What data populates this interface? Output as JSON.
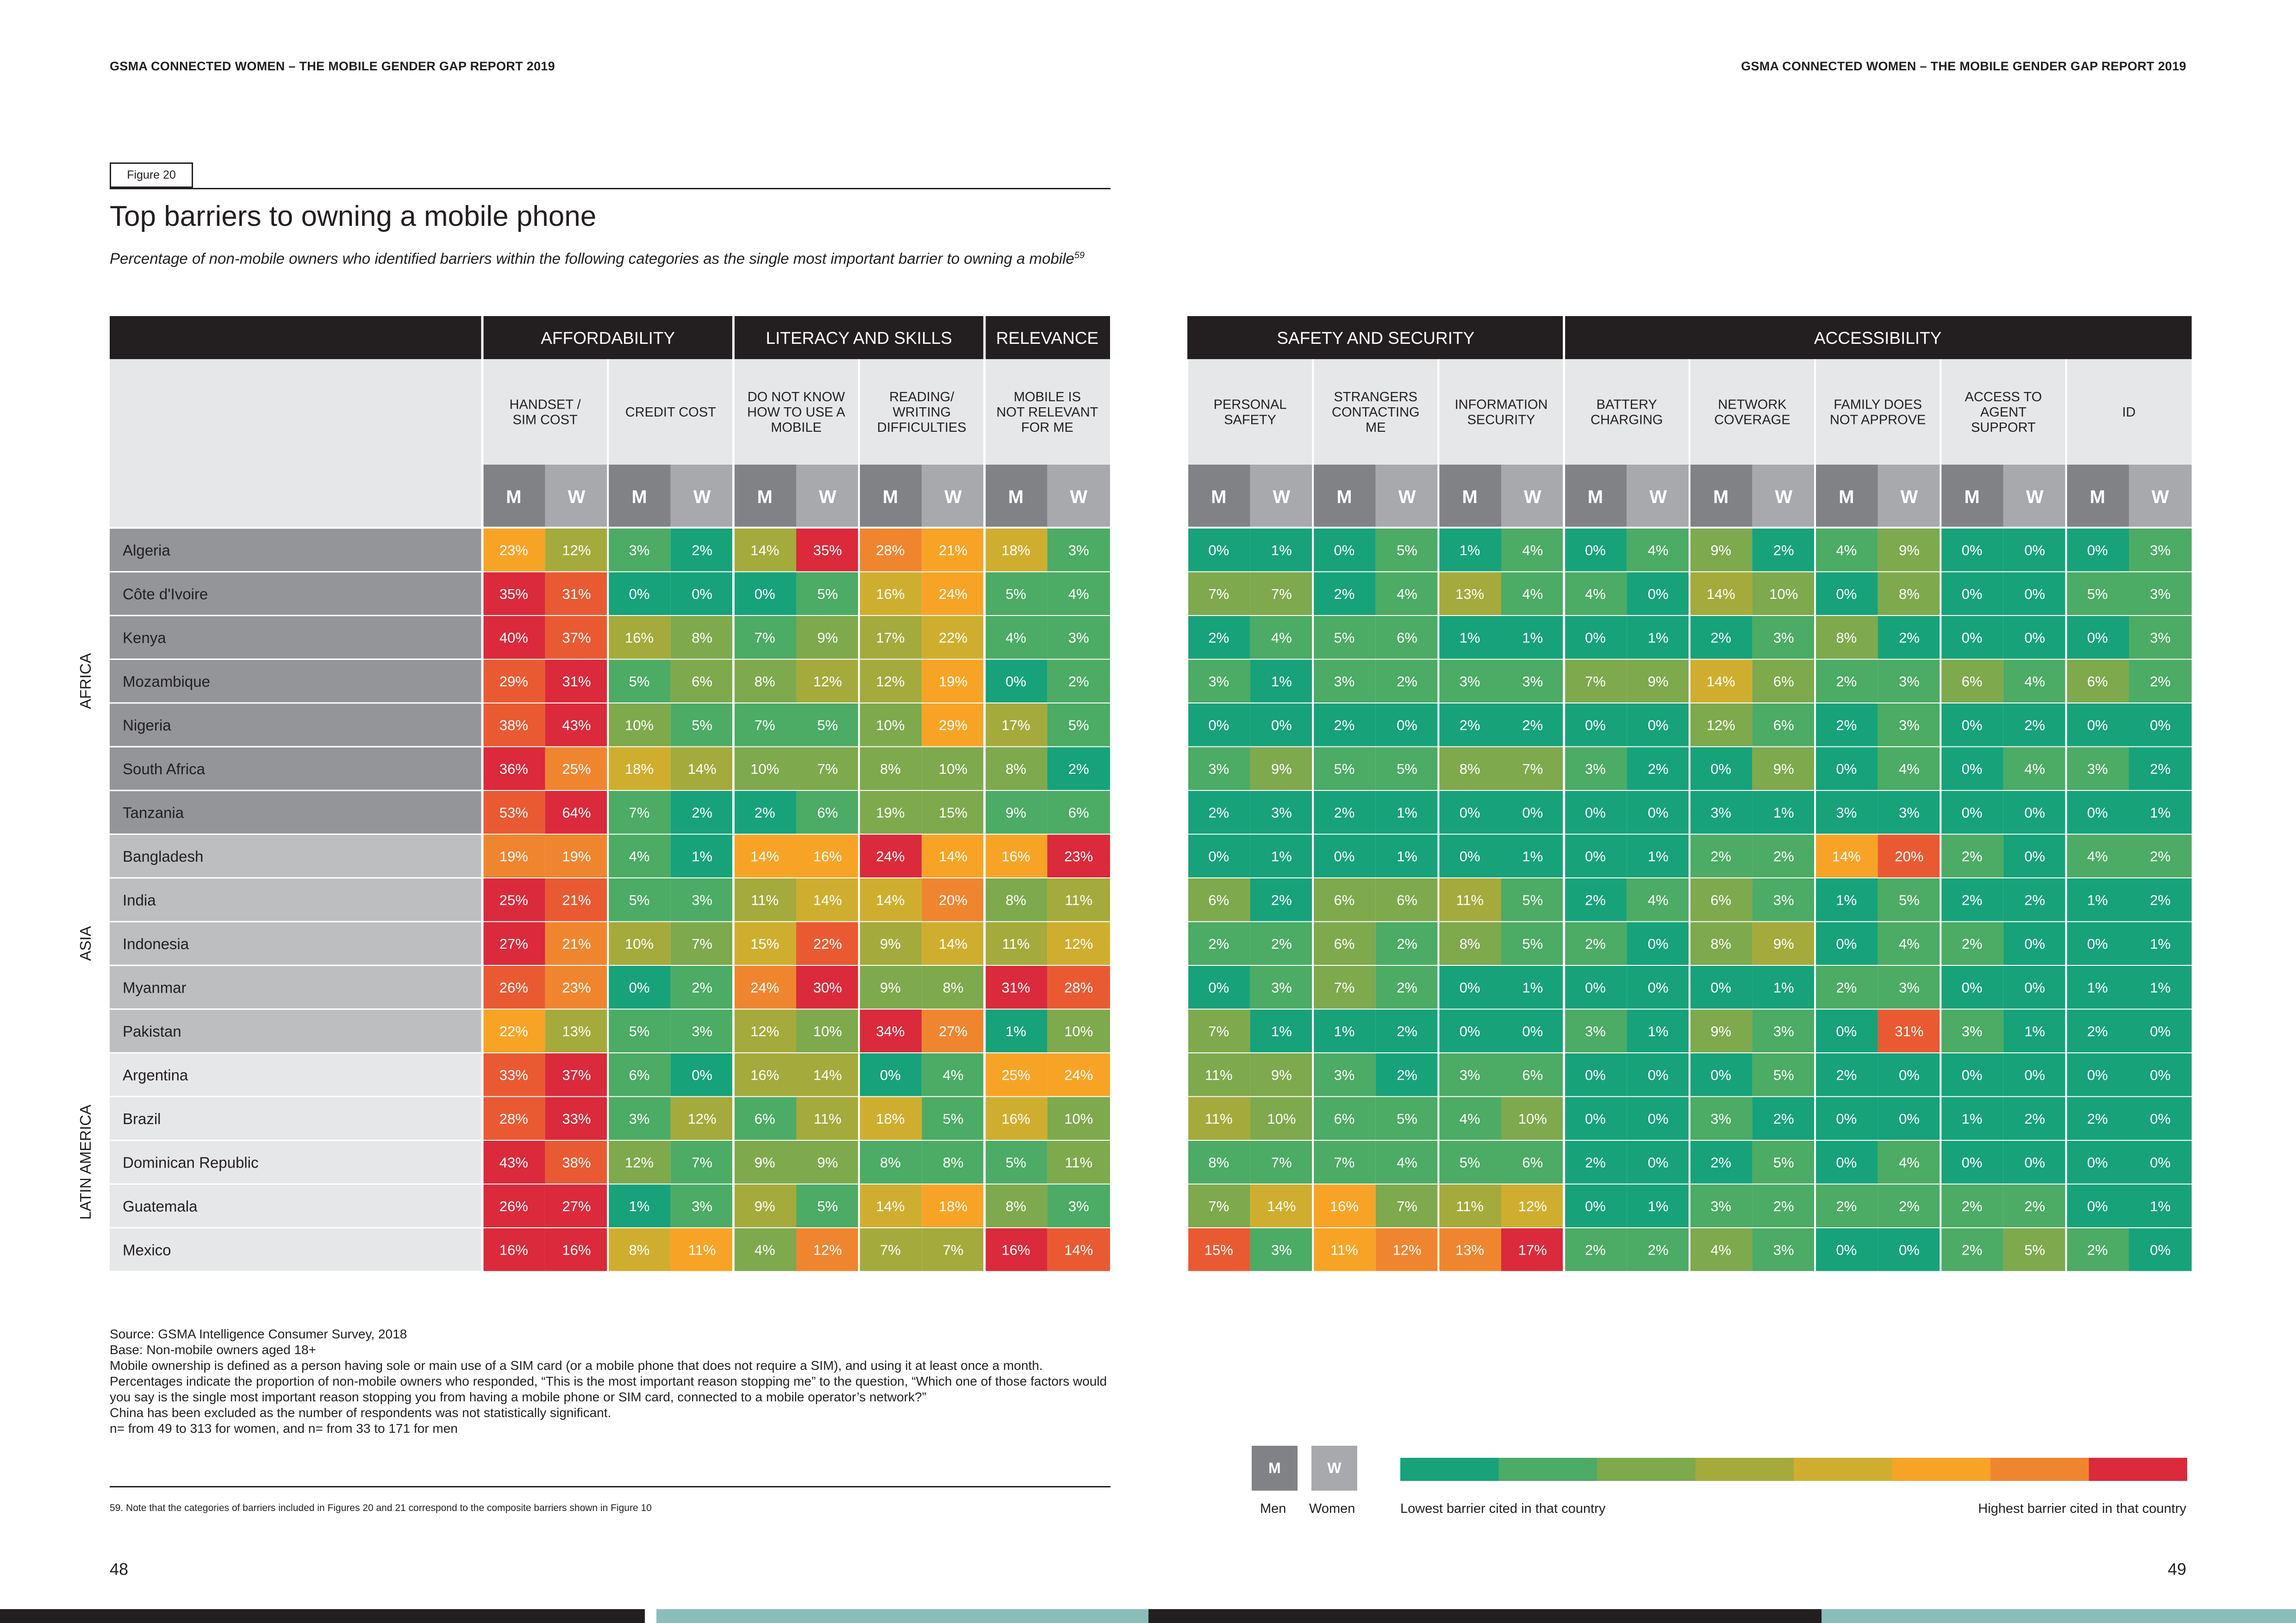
{
  "header": {
    "left": "GSMA CONNECTED WOMEN – THE MOBILE GENDER GAP REPORT 2019",
    "right": "GSMA CONNECTED WOMEN – THE MOBILE GENDER GAP REPORT 2019"
  },
  "figure": {
    "label": "Figure 20",
    "title": "Top barriers to owning a mobile phone",
    "subtitle": "Percentage of non-mobile owners who identified barriers within the following categories as the single most important barrier to owning a mobile",
    "subtitle_ref": "59"
  },
  "chart_data": {
    "type": "heatmap",
    "title": "Top barriers to owning a mobile phone",
    "color_scale": [
      "#17a27a",
      "#4cab64",
      "#7ea94d",
      "#a5aa3c",
      "#cfae2f",
      "#f7a426",
      "#f08530",
      "#e95a33",
      "#da2a3b"
    ],
    "categories": [
      {
        "label": "AFFORDABILITY",
        "barriers": [
          "HANDSET / SIM COST",
          "CREDIT COST"
        ]
      },
      {
        "label": "LITERACY AND SKILLS",
        "barriers": [
          "DO NOT KNOW HOW TO USE A MOBILE",
          "READING/ WRITING DIFFICULTIES"
        ]
      },
      {
        "label": "RELEVANCE",
        "barriers": [
          "MOBILE IS NOT RELEVANT FOR ME"
        ]
      },
      {
        "label": "SAFETY AND SECURITY",
        "barriers": [
          "PERSONAL SAFETY",
          "STRANGERS CONTACTING ME",
          "INFORMATION SECURITY"
        ]
      },
      {
        "label": "ACCESSIBILITY",
        "barriers": [
          "BATTERY CHARGING",
          "NETWORK COVERAGE",
          "FAMILY DOES NOT APPROVE",
          "ACCESS TO AGENT SUPPORT",
          "ID"
        ]
      }
    ],
    "sex_labels": [
      "M",
      "W"
    ],
    "regions": [
      {
        "label": "AFRICA",
        "countries": [
          "Algeria",
          "Côte d'Ivoire",
          "Kenya",
          "Mozambique",
          "Nigeria",
          "South Africa",
          "Tanzania"
        ]
      },
      {
        "label": "ASIA",
        "countries": [
          "Bangladesh",
          "India",
          "Indonesia",
          "Myanmar",
          "Pakistan"
        ]
      },
      {
        "label": "LATIN AMERICA",
        "countries": [
          "Argentina",
          "Brazil",
          "Dominican Republic",
          "Guatemala",
          "Mexico"
        ]
      }
    ],
    "rows": [
      [
        "23%",
        "12%",
        "3%",
        "2%",
        "14%",
        "35%",
        "28%",
        "21%",
        "18%",
        "3%",
        "0%",
        "1%",
        "0%",
        "5%",
        "1%",
        "4%",
        "0%",
        "4%",
        "9%",
        "2%",
        "4%",
        "9%",
        "0%",
        "0%",
        "0%",
        "3%"
      ],
      [
        "35%",
        "31%",
        "0%",
        "0%",
        "0%",
        "5%",
        "16%",
        "24%",
        "5%",
        "4%",
        "7%",
        "7%",
        "2%",
        "4%",
        "13%",
        "4%",
        "4%",
        "0%",
        "14%",
        "10%",
        "0%",
        "8%",
        "0%",
        "0%",
        "5%",
        "3%"
      ],
      [
        "40%",
        "37%",
        "16%",
        "8%",
        "7%",
        "9%",
        "17%",
        "22%",
        "4%",
        "3%",
        "2%",
        "4%",
        "5%",
        "6%",
        "1%",
        "1%",
        "0%",
        "1%",
        "2%",
        "3%",
        "8%",
        "2%",
        "0%",
        "0%",
        "0%",
        "3%"
      ],
      [
        "29%",
        "31%",
        "5%",
        "6%",
        "8%",
        "12%",
        "12%",
        "19%",
        "0%",
        "2%",
        "3%",
        "1%",
        "3%",
        "2%",
        "3%",
        "3%",
        "7%",
        "9%",
        "14%",
        "6%",
        "2%",
        "3%",
        "6%",
        "4%",
        "6%",
        "2%"
      ],
      [
        "38%",
        "43%",
        "10%",
        "5%",
        "7%",
        "5%",
        "10%",
        "29%",
        "17%",
        "5%",
        "0%",
        "0%",
        "2%",
        "0%",
        "2%",
        "2%",
        "0%",
        "0%",
        "12%",
        "6%",
        "2%",
        "3%",
        "0%",
        "2%",
        "0%",
        "0%"
      ],
      [
        "36%",
        "25%",
        "18%",
        "14%",
        "10%",
        "7%",
        "8%",
        "10%",
        "8%",
        "2%",
        "3%",
        "9%",
        "5%",
        "5%",
        "8%",
        "7%",
        "3%",
        "2%",
        "0%",
        "9%",
        "0%",
        "4%",
        "0%",
        "4%",
        "3%",
        "2%"
      ],
      [
        "53%",
        "64%",
        "7%",
        "2%",
        "2%",
        "6%",
        "19%",
        "15%",
        "9%",
        "6%",
        "2%",
        "3%",
        "2%",
        "1%",
        "0%",
        "0%",
        "0%",
        "0%",
        "3%",
        "1%",
        "3%",
        "3%",
        "0%",
        "0%",
        "0%",
        "1%"
      ],
      [
        "19%",
        "19%",
        "4%",
        "1%",
        "14%",
        "16%",
        "24%",
        "14%",
        "16%",
        "23%",
        "0%",
        "1%",
        "0%",
        "1%",
        "0%",
        "1%",
        "0%",
        "1%",
        "2%",
        "2%",
        "14%",
        "20%",
        "2%",
        "0%",
        "4%",
        "2%"
      ],
      [
        "25%",
        "21%",
        "5%",
        "3%",
        "11%",
        "14%",
        "14%",
        "20%",
        "8%",
        "11%",
        "6%",
        "2%",
        "6%",
        "6%",
        "11%",
        "5%",
        "2%",
        "4%",
        "6%",
        "3%",
        "1%",
        "5%",
        "2%",
        "2%",
        "1%",
        "2%"
      ],
      [
        "27%",
        "21%",
        "10%",
        "7%",
        "15%",
        "22%",
        "9%",
        "14%",
        "11%",
        "12%",
        "2%",
        "2%",
        "6%",
        "2%",
        "8%",
        "5%",
        "2%",
        "0%",
        "8%",
        "9%",
        "0%",
        "4%",
        "2%",
        "0%",
        "0%",
        "1%"
      ],
      [
        "26%",
        "23%",
        "0%",
        "2%",
        "24%",
        "30%",
        "9%",
        "8%",
        "31%",
        "28%",
        "0%",
        "3%",
        "7%",
        "2%",
        "0%",
        "1%",
        "0%",
        "0%",
        "0%",
        "1%",
        "2%",
        "3%",
        "0%",
        "0%",
        "1%",
        "1%"
      ],
      [
        "22%",
        "13%",
        "5%",
        "3%",
        "12%",
        "10%",
        "34%",
        "27%",
        "1%",
        "10%",
        "7%",
        "1%",
        "1%",
        "2%",
        "0%",
        "0%",
        "3%",
        "1%",
        "9%",
        "3%",
        "0%",
        "31%",
        "3%",
        "1%",
        "2%",
        "0%"
      ],
      [
        "33%",
        "37%",
        "6%",
        "0%",
        "16%",
        "14%",
        "0%",
        "4%",
        "25%",
        "24%",
        "11%",
        "9%",
        "3%",
        "2%",
        "3%",
        "6%",
        "0%",
        "0%",
        "0%",
        "5%",
        "2%",
        "0%",
        "0%",
        "0%",
        "0%",
        "0%"
      ],
      [
        "28%",
        "33%",
        "3%",
        "12%",
        "6%",
        "11%",
        "18%",
        "5%",
        "16%",
        "10%",
        "11%",
        "10%",
        "6%",
        "5%",
        "4%",
        "10%",
        "0%",
        "0%",
        "3%",
        "2%",
        "0%",
        "0%",
        "1%",
        "2%",
        "2%",
        "0%"
      ],
      [
        "43%",
        "38%",
        "12%",
        "7%",
        "9%",
        "9%",
        "8%",
        "8%",
        "5%",
        "11%",
        "8%",
        "7%",
        "7%",
        "4%",
        "5%",
        "6%",
        "2%",
        "0%",
        "2%",
        "5%",
        "0%",
        "4%",
        "0%",
        "0%",
        "0%",
        "0%"
      ],
      [
        "26%",
        "27%",
        "1%",
        "3%",
        "9%",
        "5%",
        "14%",
        "18%",
        "8%",
        "3%",
        "7%",
        "14%",
        "16%",
        "7%",
        "11%",
        "12%",
        "0%",
        "1%",
        "3%",
        "2%",
        "2%",
        "2%",
        "2%",
        "2%",
        "0%",
        "1%"
      ],
      [
        "16%",
        "16%",
        "8%",
        "11%",
        "4%",
        "12%",
        "7%",
        "7%",
        "16%",
        "14%",
        "15%",
        "3%",
        "11%",
        "12%",
        "13%",
        "17%",
        "2%",
        "2%",
        "4%",
        "3%",
        "0%",
        "0%",
        "2%",
        "5%",
        "2%",
        "0%"
      ]
    ]
  },
  "notes": {
    "source": "Source: GSMA Intelligence Consumer Survey, 2018",
    "base": "Base: Non-mobile owners aged 18+",
    "ownership": "Mobile ownership is defined as a person having sole or main use of a SIM card (or a mobile phone that does not require a SIM), and using it at least once a month.",
    "percentages": "Percentages indicate the proportion of non-mobile owners who responded, “This is the most important reason stopping me” to the question, “Which one of those factors would you say is the single most important reason stopping you from having a mobile phone or SIM card, connected to a mobile operator’s network?”",
    "china": "China has been excluded as the number of respondents was not statistically significant.",
    "n": "n= from 49 to 313 for women, and n= from 33 to 171 for men"
  },
  "footnote": "59.  Note that the categories of barriers included in Figures 20 and 21 correspond to the composite barriers shown in Figure 10",
  "legend": {
    "m": "M",
    "w": "W",
    "men": "Men",
    "women": "Women",
    "low": "Lowest barrier cited in that country",
    "high": "Highest barrier cited in that country"
  },
  "pages": {
    "left": "48",
    "right": "49"
  }
}
